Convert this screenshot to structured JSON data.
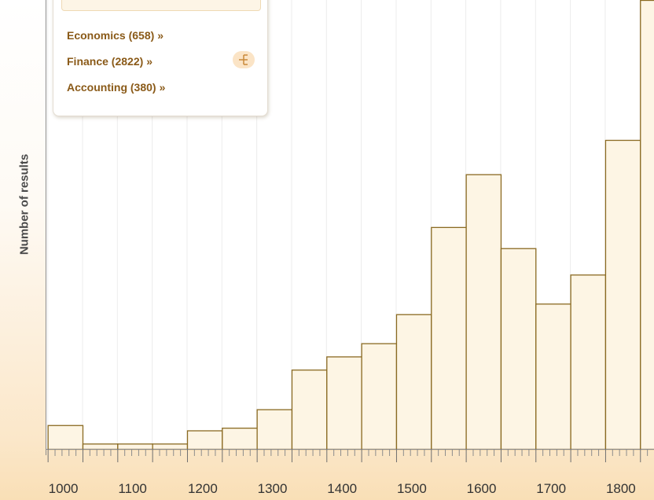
{
  "chart_data": {
    "type": "bar",
    "ylabel": "Number of results",
    "x_tick_labels": [
      "1000",
      "1100",
      "1200",
      "1300",
      "1400",
      "1500",
      "1600",
      "1700",
      "1800"
    ],
    "bin_width": 50,
    "bins": [
      {
        "start": 1000,
        "value": 9
      },
      {
        "start": 1050,
        "value": 2
      },
      {
        "start": 1100,
        "value": 2
      },
      {
        "start": 1150,
        "value": 2
      },
      {
        "start": 1200,
        "value": 7
      },
      {
        "start": 1250,
        "value": 8
      },
      {
        "start": 1300,
        "value": 15
      },
      {
        "start": 1350,
        "value": 30
      },
      {
        "start": 1400,
        "value": 35
      },
      {
        "start": 1450,
        "value": 40
      },
      {
        "start": 1500,
        "value": 51
      },
      {
        "start": 1550,
        "value": 84
      },
      {
        "start": 1600,
        "value": 104
      },
      {
        "start": 1650,
        "value": 76
      },
      {
        "start": 1700,
        "value": 55
      },
      {
        "start": 1750,
        "value": 66
      },
      {
        "start": 1800,
        "value": 117
      },
      {
        "start": 1850,
        "value": 170
      }
    ],
    "x_range": [
      997,
      1870
    ],
    "ylim": [
      0,
      170
    ],
    "grid": true,
    "colors": {
      "bar_fill": "#fdf5e4",
      "bar_stroke": "#8a6a22",
      "axis": "#8c8c8c",
      "grid": "#ececec",
      "ylabel": "#4a4a4a",
      "tick_label": "#333333"
    }
  },
  "legend": {
    "items": [
      {
        "label": "Economics (658)",
        "arrow": "»"
      },
      {
        "label": "Finance (2822)",
        "arrow": "»"
      },
      {
        "label": "Accounting (380)",
        "arrow": "»"
      }
    ],
    "icon": "tree-structure-icon",
    "link_color": "#8a5a18"
  }
}
